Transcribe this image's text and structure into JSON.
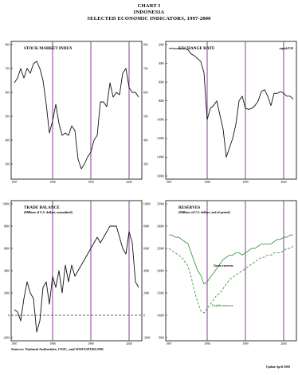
{
  "header": {
    "line1": "CHART I",
    "line2": "INDONESIA",
    "line3": "SELECTED ECONOMIC INDICATORS, 1997-2000"
  },
  "footer": {
    "source": "Sources: National Authorities, CEIC, and WEFA/DYKLINE",
    "updated": "Update April 2000"
  },
  "colors": {
    "vline": "#8a3f98",
    "series_black": "#111111",
    "series_green": "#3f9b3f",
    "dashed_ref": "#333333"
  },
  "chart_data": [
    {
      "type": "line",
      "title": "STOCK MARKET INDEX",
      "subtitle": "",
      "x": [
        "1997",
        "",
        "",
        "",
        "",
        "",
        "",
        "",
        "",
        "",
        "",
        "",
        "1998",
        "",
        "",
        "",
        "",
        "",
        "",
        "",
        "",
        "",
        "",
        "",
        "1999",
        "",
        "",
        "",
        "",
        "",
        "",
        "",
        "",
        "",
        "",
        "",
        "2000",
        "",
        "",
        ""
      ],
      "series": [
        {
          "values": [
            640,
            660,
            700,
            660,
            700,
            680,
            720,
            730,
            700,
            650,
            550,
            430,
            480,
            550,
            470,
            420,
            430,
            420,
            460,
            440,
            320,
            280,
            300,
            330,
            350,
            400,
            420,
            560,
            560,
            540,
            640,
            580,
            600,
            590,
            680,
            700,
            620,
            600,
            600,
            580
          ]
        }
      ],
      "ylim": [
        250,
        800
      ],
      "yticks": [
        300,
        400,
        500,
        600,
        700,
        800
      ],
      "xticks": [
        "1997",
        "1998",
        "1999",
        "2000"
      ],
      "vlines_at": [
        "1998",
        "1999",
        "2000"
      ],
      "grid": false
    },
    {
      "type": "line",
      "title": "EXCHANGE RATE",
      "subtitle": "",
      "legend": "rupiah/US$",
      "x": [
        "1997",
        "",
        "",
        "",
        "",
        "",
        "",
        "",
        "",
        "",
        "",
        "",
        "1998",
        "",
        "",
        "",
        "",
        "",
        "",
        "",
        "",
        "",
        "",
        "",
        "1999",
        "",
        "",
        "",
        "",
        "",
        "",
        "",
        "",
        "",
        "",
        "",
        "2000",
        "",
        "",
        ""
      ],
      "series": [
        {
          "values": [
            2400,
            2410,
            2420,
            2430,
            2440,
            2450,
            2550,
            3000,
            3200,
            3500,
            3800,
            5000,
            10000,
            8800,
            8500,
            8000,
            9500,
            11000,
            14000,
            13000,
            12000,
            10500,
            8000,
            7500,
            8800,
            8900,
            8800,
            8500,
            8000,
            7000,
            6800,
            7500,
            8500,
            7200,
            7200,
            7000,
            7200,
            7500,
            7500,
            7800
          ]
        }
      ],
      "ylim": [
        2000,
        16000
      ],
      "yticks": [
        2000,
        4000,
        6000,
        8000,
        10000,
        12000,
        14000,
        16000
      ],
      "reversed": true,
      "xticks": [
        "1997",
        "1998",
        "1999",
        "2000"
      ],
      "vlines_at": [
        "1998",
        "1999",
        "2000"
      ],
      "grid": false
    },
    {
      "type": "line",
      "title": "TRADE BALANCE",
      "subtitle": "(Millions of U.S. dollars, annualized)",
      "x": [
        "1997",
        "",
        "",
        "",
        "",
        "",
        "",
        "",
        "",
        "",
        "",
        "",
        "1998",
        "",
        "",
        "",
        "",
        "",
        "",
        "",
        "",
        "",
        "",
        "",
        "1999",
        "",
        "",
        "",
        "",
        "",
        "",
        "",
        "",
        "",
        "",
        "",
        "2000",
        "",
        "",
        ""
      ],
      "series": [
        {
          "values": [
            500,
            300,
            -500,
            1500,
            3000,
            2000,
            1500,
            -1500,
            -500,
            2500,
            3000,
            1000,
            3500,
            2500,
            4000,
            2000,
            4500,
            3000,
            4500,
            3500,
            4000,
            4500,
            5000,
            5500,
            6000,
            6500,
            7000,
            6500,
            7000,
            7500,
            8000,
            8000,
            8000,
            7000,
            6000,
            5500,
            7500,
            6500,
            3000,
            2500
          ]
        }
      ],
      "reference_line": 0,
      "ylim": [
        -2000,
        10000
      ],
      "yticks": [
        -2000,
        0,
        2000,
        4000,
        6000,
        8000,
        10000
      ],
      "xticks": [
        "1997",
        "1998",
        "1999",
        "2000"
      ],
      "vlines_at": [
        "1998",
        "1999",
        "2000"
      ],
      "grid": false
    },
    {
      "type": "line",
      "title": "RESERVES",
      "subtitle": "(Millions of U.S. dollars, end of period)",
      "x": [
        "1997",
        "",
        "",
        "",
        "",
        "",
        "",
        "",
        "",
        "",
        "",
        "",
        "1998",
        "",
        "",
        "",
        "",
        "",
        "",
        "",
        "",
        "",
        "",
        "",
        "1999",
        "",
        "",
        "",
        "",
        "",
        "",
        "",
        "",
        "",
        "",
        "",
        "2000",
        "",
        "",
        ""
      ],
      "series": [
        {
          "name": "Gross reserves",
          "style": "solid",
          "values": [
            28000,
            28000,
            27500,
            27500,
            27000,
            26500,
            26000,
            24000,
            22000,
            20000,
            19000,
            17000,
            17500,
            18500,
            19500,
            20500,
            21500,
            22500,
            23000,
            23500,
            23500,
            24000,
            24000,
            23500,
            24000,
            24500,
            25000,
            25000,
            25500,
            26000,
            26000,
            26000,
            26000,
            26500,
            27000,
            27000,
            27500,
            27500,
            28000,
            28000
          ]
        },
        {
          "name": "Usable reserves",
          "style": "dashed",
          "values": [
            25000,
            24500,
            24000,
            23500,
            23000,
            22000,
            21000,
            18500,
            15500,
            13000,
            11000,
            10500,
            11500,
            12500,
            13500,
            14500,
            15000,
            16000,
            17000,
            18000,
            18500,
            19000,
            19500,
            20000,
            20500,
            21000,
            21500,
            22000,
            22500,
            23000,
            23000,
            23500,
            23500,
            24000,
            24000,
            24000,
            24500,
            25000,
            25000,
            25500
          ]
        }
      ],
      "ylim": [
        5000,
        35000
      ],
      "yticks": [
        5000,
        10000,
        15000,
        20000,
        25000,
        30000,
        35000
      ],
      "xticks": [
        "1997",
        "1998",
        "1999",
        "2000"
      ],
      "vlines_at": [
        "1998",
        "1999",
        "2000"
      ],
      "grid": false
    }
  ]
}
